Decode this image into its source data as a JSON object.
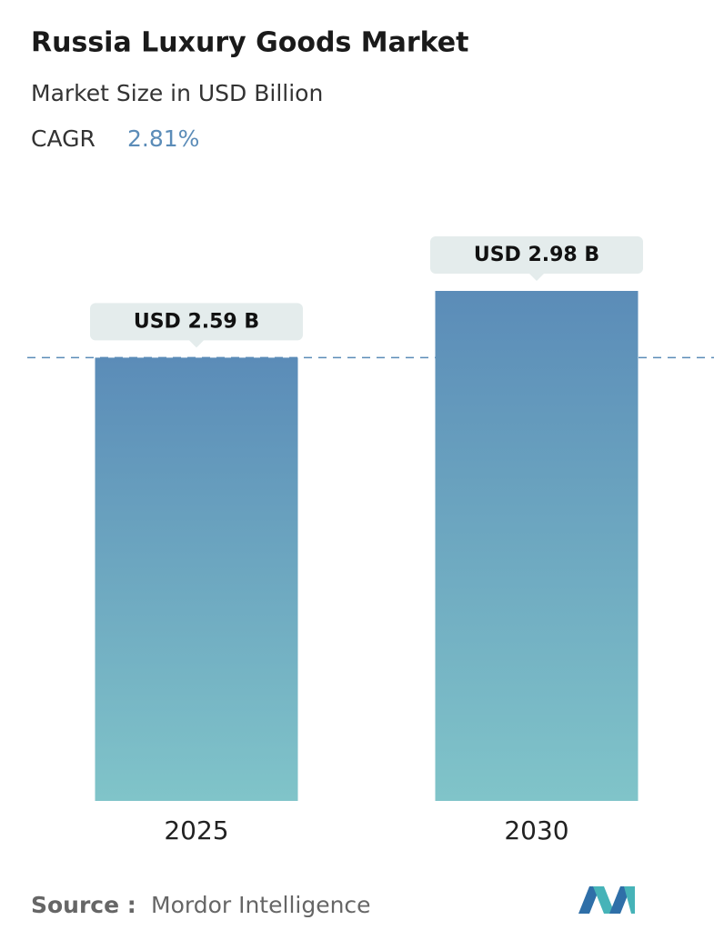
{
  "chart_data": {
    "type": "bar",
    "title": "Russia Luxury Goods Market",
    "subtitle": "Market Size in USD Billion",
    "cagr_label": "CAGR",
    "cagr": "2.81%",
    "categories": [
      "2025",
      "2030"
    ],
    "values": [
      2.59,
      2.98
    ],
    "value_labels": [
      "USD 2.59 B",
      "USD 2.98 B"
    ],
    "color_top": "#5b8cb8",
    "color_bottom": "#80c4c9",
    "source_label": "Source :",
    "source": "Mordor Intelligence"
  }
}
